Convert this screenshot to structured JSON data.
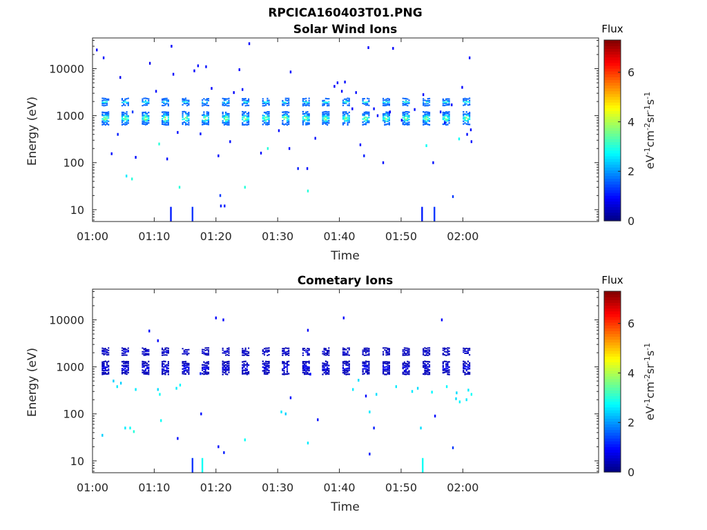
{
  "figure_title": "RPCICA160403T01.PNG",
  "colorbar": {
    "title": "Flux",
    "label_parts": [
      "eV",
      "-1",
      "cm",
      "-2",
      "sr",
      "-1",
      "s",
      "-1"
    ],
    "range": [
      0,
      7.3
    ],
    "ticks": [
      0,
      2,
      4,
      6
    ],
    "tick_labels": [
      "0",
      "2",
      "4",
      "6"
    ],
    "colormap": "jet"
  },
  "chart_data": [
    {
      "type": "heatmap",
      "title": "Solar Wind Ions",
      "xlabel": "Time",
      "ylabel": "Energy (eV)",
      "x_range": [
        "01:00",
        "02:22"
      ],
      "x_ticks": [
        "01:00",
        "01:10",
        "01:20",
        "01:30",
        "01:40",
        "01:50",
        "02:00"
      ],
      "y_scale": "log",
      "y_range": [
        5.6,
        45000
      ],
      "y_ticks": [
        10,
        100,
        1000,
        10000
      ],
      "y_tick_labels": [
        "10",
        "100",
        "1000",
        "10000"
      ],
      "sweep_minutes": [
        2.1,
        5.3,
        8.6,
        11.8,
        15.1,
        18.3,
        21.6,
        24.8,
        28.1,
        31.3,
        34.6,
        37.8,
        41.1,
        44.3,
        47.6,
        50.8,
        54.1,
        57.3,
        60.6
      ],
      "main_peak": {
        "energy_eV": 880,
        "flux": 4.0
      },
      "secondary_peak": {
        "energy_eV": 1950,
        "flux": 3.0
      },
      "scatter": [
        {
          "t": 1.8,
          "e": 17000,
          "v": 1.0
        },
        {
          "t": 4.5,
          "e": 6500,
          "v": 0.8
        },
        {
          "t": 4.1,
          "e": 400,
          "v": 1.1
        },
        {
          "t": 6.5,
          "e": 1200,
          "v": 1.3
        },
        {
          "t": 7.0,
          "e": 130,
          "v": 1.0
        },
        {
          "t": 6.4,
          "e": 45,
          "v": 3.0
        },
        {
          "t": 5.5,
          "e": 52,
          "v": 2.6
        },
        {
          "t": 9.3,
          "e": 13000,
          "v": 0.8
        },
        {
          "t": 10.3,
          "e": 3300,
          "v": 1.0
        },
        {
          "t": 10.8,
          "e": 250,
          "v": 3.0
        },
        {
          "t": 12.8,
          "e": 30000,
          "v": 0.9
        },
        {
          "t": 13.1,
          "e": 7600,
          "v": 0.9
        },
        {
          "t": 13.8,
          "e": 440,
          "v": 1.0
        },
        {
          "t": 14.1,
          "e": 30,
          "v": 3.0
        },
        {
          "t": 16.5,
          "e": 9000,
          "v": 0.9
        },
        {
          "t": 17.1,
          "e": 11500,
          "v": 1.0
        },
        {
          "t": 17.5,
          "e": 410,
          "v": 1.1
        },
        {
          "t": 18.4,
          "e": 11000,
          "v": 1.0
        },
        {
          "t": 19.3,
          "e": 3800,
          "v": 0.9
        },
        {
          "t": 20.4,
          "e": 140,
          "v": 1.0
        },
        {
          "t": 20.7,
          "e": 20,
          "v": 1.3
        },
        {
          "t": 22.3,
          "e": 280,
          "v": 1.0
        },
        {
          "t": 22.9,
          "e": 3100,
          "v": 0.9
        },
        {
          "t": 23.8,
          "e": 9500,
          "v": 0.9
        },
        {
          "t": 24.3,
          "e": 3600,
          "v": 1.0
        },
        {
          "t": 24.7,
          "e": 30,
          "v": 3.0
        },
        {
          "t": 25.4,
          "e": 34000,
          "v": 0.9
        },
        {
          "t": 27.3,
          "e": 160,
          "v": 1.0
        },
        {
          "t": 28.4,
          "e": 200,
          "v": 3.0
        },
        {
          "t": 30.2,
          "e": 480,
          "v": 1.0
        },
        {
          "t": 32.1,
          "e": 8500,
          "v": 1.0
        },
        {
          "t": 31.9,
          "e": 200,
          "v": 1.0
        },
        {
          "t": 33.3,
          "e": 75,
          "v": 1.1
        },
        {
          "t": 34.8,
          "e": 75,
          "v": 1.0
        },
        {
          "t": 34.9,
          "e": 25,
          "v": 3.0
        },
        {
          "t": 36.1,
          "e": 330,
          "v": 1.0
        },
        {
          "t": 39.2,
          "e": 4200,
          "v": 0.9
        },
        {
          "t": 39.7,
          "e": 5000,
          "v": 1.0
        },
        {
          "t": 40.4,
          "e": 3300,
          "v": 0.9
        },
        {
          "t": 40.9,
          "e": 5200,
          "v": 1.0
        },
        {
          "t": 42.1,
          "e": 1400,
          "v": 0.9
        },
        {
          "t": 42.7,
          "e": 3100,
          "v": 1.0
        },
        {
          "t": 43.4,
          "e": 240,
          "v": 1.0
        },
        {
          "t": 44.0,
          "e": 140,
          "v": 1.1
        },
        {
          "t": 44.7,
          "e": 28000,
          "v": 0.9
        },
        {
          "t": 45.6,
          "e": 1400,
          "v": 1.0
        },
        {
          "t": 46.2,
          "e": 1000,
          "v": 1.0
        },
        {
          "t": 47.1,
          "e": 100,
          "v": 1.0
        },
        {
          "t": 48.2,
          "e": 1200,
          "v": 0.9
        },
        {
          "t": 48.7,
          "e": 27000,
          "v": 0.9
        },
        {
          "t": 50.1,
          "e": 800,
          "v": 1.0
        },
        {
          "t": 52.2,
          "e": 1350,
          "v": 1.0
        },
        {
          "t": 53.6,
          "e": 2800,
          "v": 0.9
        },
        {
          "t": 54.1,
          "e": 230,
          "v": 2.8
        },
        {
          "t": 55.2,
          "e": 100,
          "v": 1.0
        },
        {
          "t": 56.4,
          "e": 1200,
          "v": 1.1
        },
        {
          "t": 57.1,
          "e": 700,
          "v": 1.0
        },
        {
          "t": 58.2,
          "e": 1700,
          "v": 1.0
        },
        {
          "t": 58.4,
          "e": 19,
          "v": 1.3
        },
        {
          "t": 59.4,
          "e": 320,
          "v": 2.8
        },
        {
          "t": 60.7,
          "e": 400,
          "v": 1.0
        },
        {
          "t": 61.3,
          "e": 500,
          "v": 1.0
        },
        {
          "t": 61.1,
          "e": 17000,
          "v": 1.0
        },
        {
          "t": 59.9,
          "e": 4000,
          "v": 0.9
        },
        {
          "t": 61.4,
          "e": 280,
          "v": 1.0
        },
        {
          "t": 3.1,
          "e": 155,
          "v": 1.0
        },
        {
          "t": 12.1,
          "e": 120,
          "v": 1.0
        },
        {
          "t": 21.4,
          "e": 12,
          "v": 1.1
        },
        {
          "t": 20.8,
          "e": 12,
          "v": 1.1
        },
        {
          "t": 0.7,
          "e": 25000,
          "v": 0.9
        }
      ],
      "streaks": [
        {
          "t": 12.7,
          "e_low": 5.6,
          "e_high": 11.5,
          "v": 1.1
        },
        {
          "t": 16.2,
          "e_low": 5.6,
          "e_high": 11.5,
          "v": 1.3
        },
        {
          "t": 53.4,
          "e_low": 5.6,
          "e_high": 11.5,
          "v": 1.1
        },
        {
          "t": 55.4,
          "e_low": 5.6,
          "e_high": 11.5,
          "v": 1.3
        }
      ]
    },
    {
      "type": "heatmap",
      "title": "Cometary Ions",
      "xlabel": "Time",
      "ylabel": "Energy (eV)",
      "x_range": [
        "01:00",
        "02:22"
      ],
      "x_ticks": [
        "01:00",
        "01:10",
        "01:20",
        "01:30",
        "01:40",
        "01:50",
        "02:00"
      ],
      "y_scale": "log",
      "y_range": [
        5.6,
        45000
      ],
      "y_ticks": [
        10,
        100,
        1000,
        10000
      ],
      "y_tick_labels": [
        "10",
        "100",
        "1000",
        "10000"
      ],
      "sweep_minutes": [
        2.1,
        5.3,
        8.6,
        11.8,
        15.1,
        18.3,
        21.6,
        24.8,
        28.1,
        31.3,
        34.6,
        37.8,
        41.1,
        44.3,
        47.6,
        50.8,
        54.1,
        57.3,
        60.6
      ],
      "main_peak": {
        "energy_eV": 950,
        "flux": 0.9
      },
      "secondary_peak": {
        "energy_eV": 2100,
        "flux": 0.7
      },
      "scatter": [
        {
          "t": 4.0,
          "e": 380,
          "v": 2.6
        },
        {
          "t": 4.6,
          "e": 450,
          "v": 2.4
        },
        {
          "t": 7.0,
          "e": 330,
          "v": 2.6
        },
        {
          "t": 10.6,
          "e": 330,
          "v": 2.5
        },
        {
          "t": 10.9,
          "e": 260,
          "v": 2.8
        },
        {
          "t": 13.6,
          "e": 350,
          "v": 2.6
        },
        {
          "t": 14.2,
          "e": 410,
          "v": 2.7
        },
        {
          "t": 9.2,
          "e": 5800,
          "v": 1.0
        },
        {
          "t": 10.6,
          "e": 3600,
          "v": 0.9
        },
        {
          "t": 17.5,
          "e": 720,
          "v": 1.1
        },
        {
          "t": 20.0,
          "e": 11000,
          "v": 0.9
        },
        {
          "t": 21.2,
          "e": 10000,
          "v": 0.9
        },
        {
          "t": 30.6,
          "e": 110,
          "v": 2.6
        },
        {
          "t": 31.3,
          "e": 100,
          "v": 2.4
        },
        {
          "t": 32.1,
          "e": 220,
          "v": 1.0
        },
        {
          "t": 34.9,
          "e": 6000,
          "v": 0.9
        },
        {
          "t": 35.3,
          "e": 700,
          "v": 1.0
        },
        {
          "t": 36.5,
          "e": 75,
          "v": 1.0
        },
        {
          "t": 40.7,
          "e": 11000,
          "v": 0.9
        },
        {
          "t": 42.2,
          "e": 330,
          "v": 2.6
        },
        {
          "t": 43.1,
          "e": 520,
          "v": 2.5
        },
        {
          "t": 44.3,
          "e": 240,
          "v": 1.0
        },
        {
          "t": 44.9,
          "e": 110,
          "v": 2.6
        },
        {
          "t": 46.0,
          "e": 260,
          "v": 2.5
        },
        {
          "t": 49.2,
          "e": 380,
          "v": 2.6
        },
        {
          "t": 51.8,
          "e": 300,
          "v": 2.6
        },
        {
          "t": 52.7,
          "e": 350,
          "v": 2.5
        },
        {
          "t": 55.0,
          "e": 290,
          "v": 2.7
        },
        {
          "t": 56.6,
          "e": 10000,
          "v": 0.9
        },
        {
          "t": 57.4,
          "e": 380,
          "v": 2.7
        },
        {
          "t": 59.0,
          "e": 280,
          "v": 2.5
        },
        {
          "t": 60.9,
          "e": 320,
          "v": 2.6
        },
        {
          "t": 61.4,
          "e": 260,
          "v": 2.8
        },
        {
          "t": 1.6,
          "e": 35,
          "v": 2.4
        },
        {
          "t": 5.3,
          "e": 50,
          "v": 2.6
        },
        {
          "t": 6.1,
          "e": 50,
          "v": 2.8
        },
        {
          "t": 6.7,
          "e": 42,
          "v": 3.0
        },
        {
          "t": 11.1,
          "e": 72,
          "v": 2.8
        },
        {
          "t": 13.8,
          "e": 30,
          "v": 1.0
        },
        {
          "t": 17.6,
          "e": 100,
          "v": 1.0
        },
        {
          "t": 20.4,
          "e": 20,
          "v": 1.0
        },
        {
          "t": 21.3,
          "e": 15,
          "v": 1.1
        },
        {
          "t": 24.7,
          "e": 28,
          "v": 2.8
        },
        {
          "t": 34.9,
          "e": 24,
          "v": 2.6
        },
        {
          "t": 44.9,
          "e": 14,
          "v": 1.1
        },
        {
          "t": 45.6,
          "e": 50,
          "v": 1.1
        },
        {
          "t": 53.2,
          "e": 50,
          "v": 2.5
        },
        {
          "t": 55.5,
          "e": 90,
          "v": 1.0
        },
        {
          "t": 58.4,
          "e": 19,
          "v": 1.3
        },
        {
          "t": 60.6,
          "e": 200,
          "v": 2.6
        },
        {
          "t": 59.5,
          "e": 180,
          "v": 2.7
        },
        {
          "t": 58.9,
          "e": 210,
          "v": 2.5
        },
        {
          "t": 3.4,
          "e": 500,
          "v": 2.4
        }
      ],
      "streaks": [
        {
          "t": 16.2,
          "e_low": 5.6,
          "e_high": 11.5,
          "v": 1.3
        },
        {
          "t": 17.8,
          "e_low": 5.6,
          "e_high": 11.5,
          "v": 2.8
        },
        {
          "t": 53.5,
          "e_low": 5.6,
          "e_high": 11.5,
          "v": 2.8
        }
      ]
    }
  ]
}
